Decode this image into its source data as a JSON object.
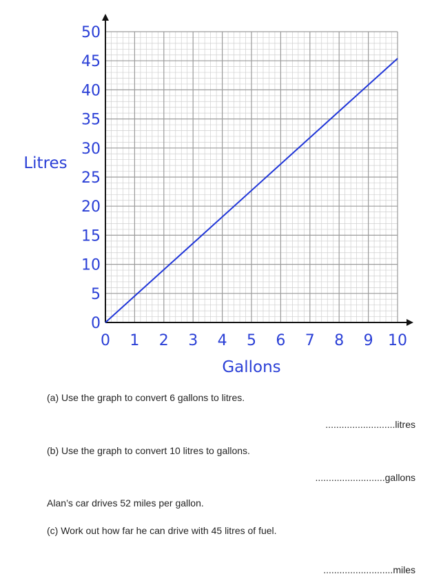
{
  "chart_data": {
    "type": "line",
    "xlabel": "Gallons",
    "ylabel": "Litres",
    "xlim": [
      0,
      10
    ],
    "ylim": [
      0,
      50
    ],
    "x_ticks": [
      "0",
      "1",
      "2",
      "3",
      "4",
      "5",
      "6",
      "7",
      "8",
      "9",
      "10"
    ],
    "y_ticks": [
      "0",
      "5",
      "10",
      "15",
      "20",
      "25",
      "30",
      "35",
      "40",
      "45",
      "50"
    ],
    "grid": true,
    "minor_divisions": 5,
    "series": [
      {
        "x": [
          0,
          10
        ],
        "y": [
          0,
          45.4
        ]
      }
    ],
    "colors": {
      "line": "#1f35d8",
      "labels": "#2a3fd6",
      "grid_major": "#9a9a9a",
      "grid_minor": "#cfcfcf",
      "axis": "#111111"
    }
  },
  "questions": {
    "a": "(a)  Use the graph to convert 6 gallons to litres.",
    "a_answer": "..........................litres",
    "b": "(b) Use the graph to convert 10 litres to gallons.",
    "b_answer": "..........................gallons",
    "info": "Alan’s car drives 52 miles per gallon.",
    "c": "(c) Work out how far he can drive with 45 litres of fuel.",
    "c_answer": "..........................miles"
  }
}
